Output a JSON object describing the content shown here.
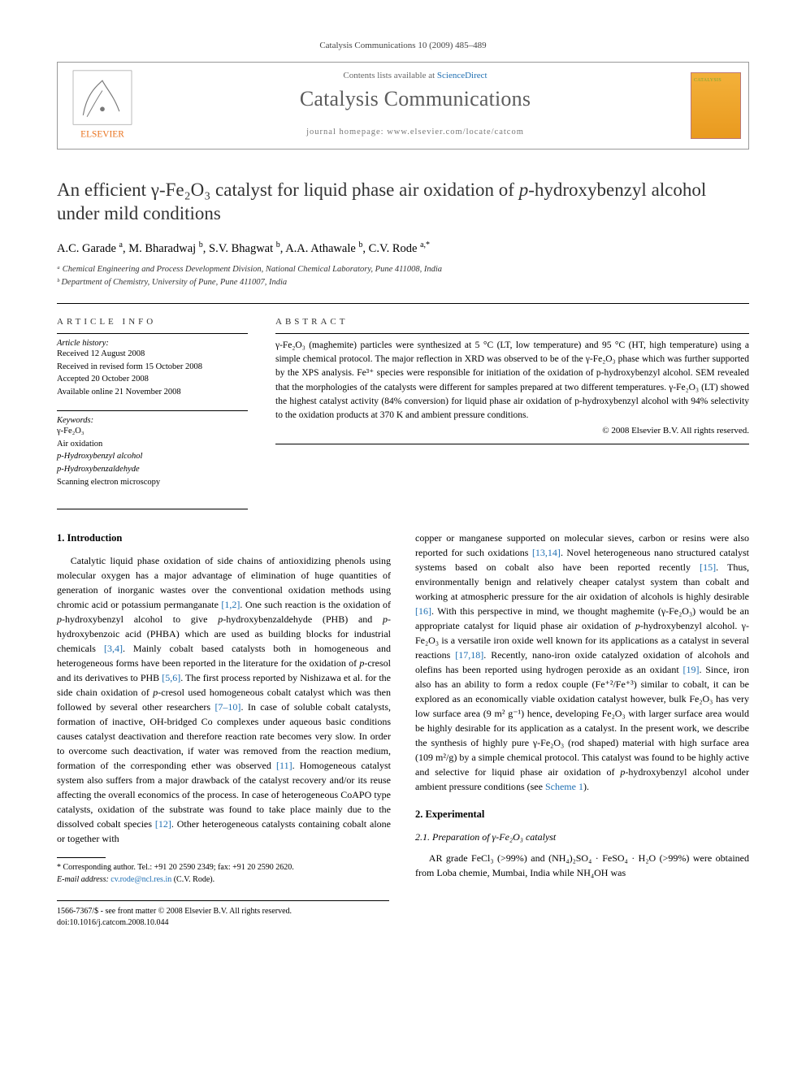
{
  "running_head": "Catalysis Communications 10 (2009) 485–489",
  "header": {
    "contents_prefix": "Contents lists available at ",
    "contents_link": "ScienceDirect",
    "journal": "Catalysis Communications",
    "homepage_prefix": "journal homepage: ",
    "homepage": "www.elsevier.com/locate/catcom"
  },
  "title_html": "An efficient γ-Fe₂O₃ catalyst for liquid phase air oxidation of <i>p</i>-hydroxybenzyl alcohol under mild conditions",
  "authors_html": "A.C. Garade <sup>a</sup>, M. Bharadwaj <sup>b</sup>, S.V. Bhagwat <sup>b</sup>, A.A. Athawale <sup>b</sup>, C.V. Rode <sup>a,*</sup>",
  "affiliations": [
    "ᵃ Chemical Engineering and Process Development Division, National Chemical Laboratory, Pune 411008, India",
    "ᵇ Department of Chemistry, University of Pune, Pune 411007, India"
  ],
  "article_info": {
    "heading": "ARTICLE INFO",
    "history_title": "Article history:",
    "history": [
      "Received 12 August 2008",
      "Received in revised form 15 October 2008",
      "Accepted 20 October 2008",
      "Available online 21 November 2008"
    ],
    "keywords_title": "Keywords:",
    "keywords": [
      "γ-Fe₂O₃",
      "Air oxidation",
      "p-Hydroxybenzyl alcohol",
      "p-Hydroxybenzaldehyde",
      "Scanning electron microscopy"
    ]
  },
  "abstract": {
    "heading": "ABSTRACT",
    "text": "γ-Fe₂O₃ (maghemite) particles were synthesized at 5 °C (LT, low temperature) and 95 °C (HT, high temperature) using a simple chemical protocol. The major reflection in XRD was observed to be of the γ-Fe₂O₃ phase which was further supported by the XPS analysis. Fe³⁺ species were responsible for initiation of the oxidation of p-hydroxybenzyl alcohol. SEM revealed that the morphologies of the catalysts were different for samples prepared at two different temperatures. γ-Fe₂O₃ (LT) showed the highest catalyst activity (84% conversion) for liquid phase air oxidation of p-hydroxybenzyl alcohol with 94% selectivity to the oxidation products at 370 K and ambient pressure conditions.",
    "copyright": "© 2008 Elsevier B.V. All rights reserved."
  },
  "sections": {
    "intro_head": "1. Introduction",
    "intro_p1_html": "Catalytic liquid phase oxidation of side chains of antioxidizing phenols using molecular oxygen has a major advantage of elimination of huge quantities of generation of inorganic wastes over the conventional oxidation methods using chromic acid or potassium permanganate <span class=\"ref\">[1,2]</span>. One such reaction is the oxidation of <i>p</i>-hydroxybenzyl alcohol to give <i>p</i>-hydroxybenzaldehyde (PHB) and <i>p</i>-hydroxybenzoic acid (PHBA) which are used as building blocks for industrial chemicals <span class=\"ref\">[3,4]</span>. Mainly cobalt based catalysts both in homogeneous and heterogeneous forms have been reported in the literature for the oxidation of <i>p</i>-cresol and its derivatives to PHB <span class=\"ref\">[5,6]</span>. The first process reported by Nishizawa et al. for the side chain oxidation of <i>p</i>-cresol used homogeneous cobalt catalyst which was then followed by several other researchers <span class=\"ref\">[7–10]</span>. In case of soluble cobalt catalysts, formation of inactive, OH-bridged Co complexes under aqueous basic conditions causes catalyst deactivation and therefore reaction rate becomes very slow. In order to overcome such deactivation, if water was removed from the reaction medium, formation of the corresponding ether was observed <span class=\"ref\">[11]</span>. Homogeneous catalyst system also suffers from a major drawback of the catalyst recovery and/or its reuse affecting the overall economics of the process. In case of heterogeneous CoAPO type catalysts, oxidation of the substrate was found to take place mainly due to the dissolved cobalt species <span class=\"ref\">[12]</span>. Other heterogeneous catalysts containing cobalt alone or together with",
    "intro_p2_html": "copper or manganese supported on molecular sieves, carbon or resins were also reported for such oxidations <span class=\"ref\">[13,14]</span>. Novel heterogeneous nano structured catalyst systems based on cobalt also have been reported recently <span class=\"ref\">[15]</span>. Thus, environmentally benign and relatively cheaper catalyst system than cobalt and working at atmospheric pressure for the air oxidation of alcohols is highly desirable <span class=\"ref\">[16]</span>. With this perspective in mind, we thought maghemite (γ-Fe₂O₃) would be an appropriate catalyst for liquid phase air oxidation of <i>p</i>-hydroxybenzyl alcohol. γ-Fe₂O₃ is a versatile iron oxide well known for its applications as a catalyst in several reactions <span class=\"ref\">[17,18]</span>. Recently, nano-iron oxide catalyzed oxidation of alcohols and olefins has been reported using hydrogen peroxide as an oxidant <span class=\"ref\">[19]</span>. Since, iron also has an ability to form a redox couple (Fe⁺²/Fe⁺³) similar to cobalt, it can be explored as an economically viable oxidation catalyst however, bulk Fe₂O₃ has very low surface area (9 m² g⁻¹) hence, developing Fe₂O₃ with larger surface area would be highly desirable for its application as a catalyst. In the present work, we describe the synthesis of highly pure γ-Fe₂O₃ (rod shaped) material with high surface area (109 m²/g) by a simple chemical protocol. This catalyst was found to be highly active and selective for liquid phase air oxidation of <i>p</i>-hydroxybenzyl alcohol under ambient pressure conditions (see <span class=\"ref\">Scheme 1</span>).",
    "exp_head": "2. Experimental",
    "exp_sub": "2.1. Preparation of γ-Fe₂O₃ catalyst",
    "exp_p1_html": "AR grade FeCl₃ (>99%) and (NH₄)₂SO₄ · FeSO₄ · H₂O (>99%) were obtained from Loba chemie, Mumbai, India while NH₄OH was"
  },
  "corresponding": {
    "line1": "* Corresponding author. Tel.: +91 20 2590 2349; fax: +91 20 2590 2620.",
    "line2_html": "<i>E-mail address:</i> <span class=\"ref\">cv.rode@ncl.res.in</span> (C.V. Rode)."
  },
  "footer": {
    "line1": "1566-7367/$ - see front matter © 2008 Elsevier B.V. All rights reserved.",
    "line2": "doi:10.1016/j.catcom.2008.10.044"
  },
  "colors": {
    "link": "#1f6fb2",
    "rule": "#000000",
    "muted": "#666666",
    "elsevier_orange": "#e9711c"
  }
}
